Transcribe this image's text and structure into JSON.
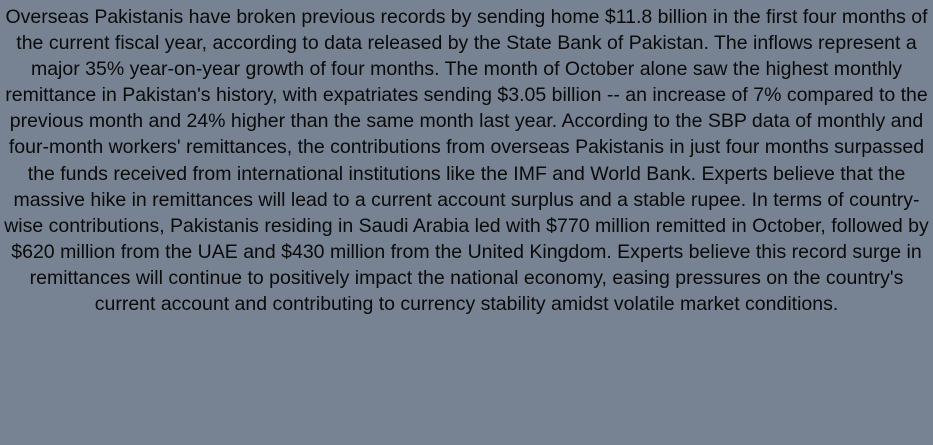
{
  "article": {
    "text": "Overseas Pakistanis have broken previous records by sending home $11.8 billion in the first four months of the current fiscal year, according to data released by the State Bank of Pakistan. The inflows represent a major 35% year-on-year growth of four months. The month of October alone saw the highest monthly remittance in Pakistan's history, with expatriates sending $3.05 billion -- an increase of 7% compared to the previous month and 24% higher than the same month last year. According to the SBP data of monthly and four-month workers' remittances, the contributions from overseas Pakistanis in just four months surpassed the funds received from international institutions like the IMF and World Bank. Experts believe that the massive hike in remittances will lead to a current account surplus and a stable rupee. In terms of country-wise contributions, Pakistanis residing in Saudi Arabia led with $770 million remitted in October, followed by $620 million from the UAE and $430 million from the United Kingdom. Experts believe this record surge in remittances will continue to positively impact the national economy, easing pressures on the country's current account and contributing to currency stability amidst volatile market conditions."
  },
  "colors": {
    "background": "#778392",
    "text": "#0a0a0a"
  }
}
